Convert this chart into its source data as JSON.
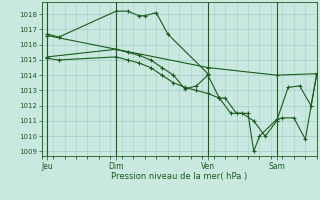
{
  "background_color": "#c8e8e0",
  "grid_color": "#a8cccc",
  "line_color": "#1a5c1a",
  "ylim_min": 1008.7,
  "ylim_max": 1018.8,
  "yticks": [
    1009,
    1010,
    1011,
    1012,
    1013,
    1014,
    1015,
    1016,
    1017,
    1018
  ],
  "xlim_min": 0,
  "xlim_max": 24,
  "day_labels": [
    "Jeu",
    "Dim",
    "Ven",
    "Sam"
  ],
  "day_positions": [
    0.5,
    6.5,
    14.5,
    20.5
  ],
  "vline_positions": [
    0.5,
    6.5,
    14.5,
    20.5
  ],
  "xlabel": "Pression niveau de la mer( hPa )",
  "series1_x": [
    0.5,
    1.5,
    6.5,
    7.5,
    8.5,
    9.0,
    10.0,
    11.0,
    14.5
  ],
  "series1_y": [
    1016.7,
    1016.5,
    1018.2,
    1018.2,
    1017.9,
    1017.9,
    1018.1,
    1016.7,
    1014.1
  ],
  "series2_x": [
    0.5,
    6.5,
    14.5,
    20.5,
    24.0
  ],
  "series2_y": [
    1016.6,
    1015.7,
    1014.5,
    1014.0,
    1014.1
  ],
  "series3_x": [
    0.5,
    6.5,
    7.5,
    8.5,
    9.5,
    10.5,
    11.5,
    12.5,
    13.5,
    14.5,
    15.5,
    16.0,
    17.0,
    18.0,
    18.5,
    19.0,
    20.5,
    21.0,
    22.0,
    23.0,
    24.0
  ],
  "series3_y": [
    1015.2,
    1015.7,
    1015.5,
    1015.3,
    1015.0,
    1014.5,
    1014.0,
    1013.1,
    1013.3,
    1014.0,
    1012.5,
    1012.5,
    1011.5,
    1011.5,
    1009.0,
    1010.0,
    1011.1,
    1011.2,
    1011.2,
    1009.8,
    1014.1
  ],
  "series4_x": [
    0.5,
    1.5,
    6.5,
    7.5,
    8.5,
    9.5,
    10.5,
    11.5,
    12.5,
    13.5,
    14.5,
    15.5,
    16.5,
    17.5,
    18.5,
    19.5,
    20.5,
    21.5,
    22.5,
    23.5,
    24.0
  ],
  "series4_y": [
    1015.1,
    1015.0,
    1015.2,
    1015.0,
    1014.8,
    1014.5,
    1014.0,
    1013.5,
    1013.2,
    1013.0,
    1012.8,
    1012.5,
    1011.5,
    1011.5,
    1011.0,
    1010.0,
    1011.0,
    1013.2,
    1013.3,
    1012.0,
    1014.1
  ]
}
